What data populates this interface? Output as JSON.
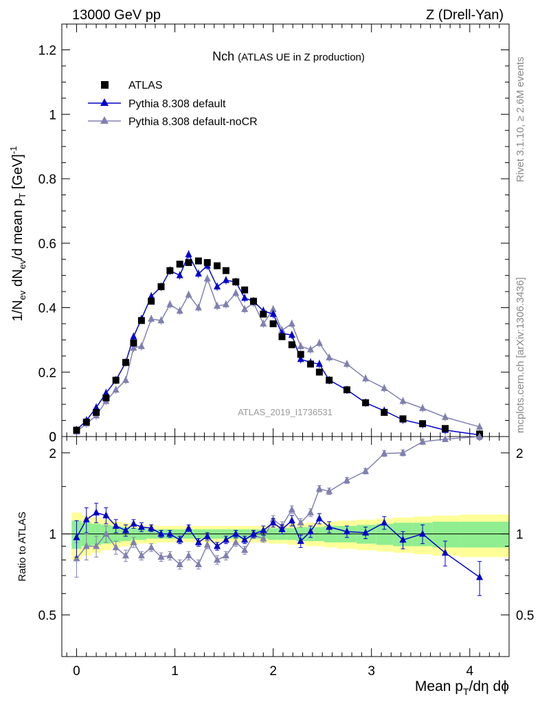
{
  "header": {
    "left": "13000 GeV pp",
    "right": "Z (Drell-Yan)"
  },
  "side_text": {
    "rivet": "Rivet 3.1.10, ≥ 2.6M events",
    "site": "mcplots.cern.ch [arXiv:1306.3436]"
  },
  "chart_data": [
    {
      "type": "line",
      "panel": "main",
      "title_main": "Nch",
      "title_sub": "(ATLAS UE in Z production)",
      "watermark": "ATLAS_2019_I1736531",
      "ylabel": {
        "a": "1/N",
        "b": "ev",
        "c": " dN",
        "d": "ev",
        "e": "/d mean p",
        "f": "T",
        "g": " [GeV]",
        "h": "-1"
      },
      "xlim": [
        -0.15,
        4.4
      ],
      "ylim": [
        0,
        1.28
      ],
      "x_ticks": [
        0,
        1,
        2,
        3,
        4
      ],
      "y_ticks": [
        "0",
        "0.2",
        "0.4",
        "0.6",
        "0.8",
        "1",
        "1.2"
      ],
      "legend": [
        "ATLAS",
        "Pythia 8.308 default",
        "Pythia 8.308 default-noCR"
      ],
      "colors": {
        "data": "#000000",
        "default": "#0000cc",
        "nocr": "#8080b0"
      },
      "x": [
        0.0,
        0.1,
        0.2,
        0.3,
        0.4,
        0.5,
        0.6,
        0.7,
        0.8,
        0.9,
        1.0,
        1.1,
        1.2,
        1.3,
        1.4,
        1.5,
        1.6,
        1.7,
        1.8,
        1.9,
        2.0,
        2.1,
        2.2,
        2.3,
        2.4,
        2.5,
        2.6,
        2.75,
        2.95,
        3.15,
        3.35,
        3.55,
        3.8,
        4.1
      ],
      "series": [
        {
          "name": "ATLAS",
          "x": [
            0.0,
            0.1,
            0.2,
            0.3,
            0.4,
            0.5,
            0.58,
            0.66,
            0.76,
            0.86,
            0.95,
            1.05,
            1.14,
            1.24,
            1.33,
            1.43,
            1.52,
            1.62,
            1.71,
            1.8,
            1.9,
            2.0,
            2.09,
            2.19,
            2.28,
            2.38,
            2.47,
            2.57,
            2.75,
            2.94,
            3.13,
            3.32,
            3.52,
            3.75,
            4.1
          ],
          "values": [
            0.02,
            0.045,
            0.075,
            0.12,
            0.175,
            0.23,
            0.29,
            0.36,
            0.42,
            0.465,
            0.515,
            0.535,
            0.54,
            0.545,
            0.54,
            0.53,
            0.515,
            0.48,
            0.455,
            0.42,
            0.38,
            0.35,
            0.31,
            0.285,
            0.255,
            0.225,
            0.2,
            0.175,
            0.145,
            0.105,
            0.075,
            0.055,
            0.04,
            0.025,
            0.008
          ]
        },
        {
          "name": "Pythia 8.308 default",
          "x": [
            0.0,
            0.1,
            0.2,
            0.3,
            0.4,
            0.5,
            0.58,
            0.66,
            0.76,
            0.86,
            0.95,
            1.05,
            1.14,
            1.24,
            1.33,
            1.43,
            1.52,
            1.62,
            1.71,
            1.8,
            1.9,
            2.0,
            2.09,
            2.19,
            2.28,
            2.38,
            2.47,
            2.57,
            2.75,
            2.94,
            3.13,
            3.32,
            3.52,
            3.75,
            4.1
          ],
          "values": [
            0.02,
            0.05,
            0.09,
            0.135,
            0.175,
            0.23,
            0.31,
            0.365,
            0.435,
            0.465,
            0.515,
            0.5,
            0.565,
            0.505,
            0.53,
            0.465,
            0.485,
            0.48,
            0.43,
            0.42,
            0.39,
            0.38,
            0.32,
            0.315,
            0.24,
            0.23,
            0.225,
            0.175,
            0.145,
            0.105,
            0.08,
            0.052,
            0.038,
            0.02,
            0.005
          ]
        },
        {
          "name": "Pythia 8.308 default-noCR",
          "x": [
            0.0,
            0.1,
            0.2,
            0.3,
            0.4,
            0.5,
            0.58,
            0.66,
            0.76,
            0.86,
            0.95,
            1.05,
            1.14,
            1.24,
            1.33,
            1.43,
            1.52,
            1.62,
            1.71,
            1.8,
            1.9,
            2.0,
            2.09,
            2.19,
            2.28,
            2.38,
            2.47,
            2.57,
            2.75,
            2.94,
            3.13,
            3.32,
            3.52,
            3.75,
            4.1
          ],
          "values": [
            0.015,
            0.04,
            0.065,
            0.11,
            0.145,
            0.175,
            0.275,
            0.28,
            0.365,
            0.36,
            0.41,
            0.39,
            0.44,
            0.4,
            0.49,
            0.405,
            0.41,
            0.445,
            0.395,
            0.415,
            0.35,
            0.395,
            0.33,
            0.35,
            0.28,
            0.27,
            0.29,
            0.245,
            0.225,
            0.18,
            0.15,
            0.11,
            0.088,
            0.06,
            0.03
          ]
        }
      ]
    },
    {
      "type": "line",
      "panel": "ratio",
      "ylabel": "Ratio to ATLAS",
      "xlabel": {
        "a": "Mean p",
        "b": "T",
        "c": "/dη dϕ"
      },
      "xlim": [
        -0.15,
        4.4
      ],
      "ylim": [
        0.35,
        2.3
      ],
      "x_ticks": [
        0,
        1,
        2,
        3,
        4
      ],
      "y_ticks": [
        "0.5",
        "1",
        "2"
      ],
      "series": [
        {
          "name": "Pythia 8.308 default",
          "x": [
            0.0,
            0.1,
            0.2,
            0.3,
            0.4,
            0.5,
            0.58,
            0.66,
            0.76,
            0.86,
            0.95,
            1.05,
            1.14,
            1.24,
            1.33,
            1.43,
            1.52,
            1.62,
            1.71,
            1.8,
            1.9,
            2.0,
            2.09,
            2.19,
            2.28,
            2.38,
            2.47,
            2.57,
            2.75,
            2.94,
            3.13,
            3.32,
            3.52,
            3.75,
            4.1
          ],
          "values": [
            0.97,
            1.13,
            1.2,
            1.17,
            1.07,
            1.03,
            1.09,
            1.06,
            1.05,
            1.0,
            1.0,
            0.95,
            1.05,
            0.93,
            0.98,
            0.9,
            0.95,
            1.0,
            0.95,
            1.0,
            1.03,
            1.1,
            1.04,
            1.12,
            0.94,
            1.02,
            1.14,
            1.06,
            1.02,
            1.01,
            1.1,
            0.95,
            1.0,
            0.85,
            0.69
          ],
          "errors": [
            0.15,
            0.12,
            0.1,
            0.08,
            0.06,
            0.05,
            0.04,
            0.04,
            0.03,
            0.03,
            0.03,
            0.03,
            0.03,
            0.03,
            0.03,
            0.03,
            0.03,
            0.03,
            0.03,
            0.03,
            0.04,
            0.04,
            0.04,
            0.05,
            0.05,
            0.05,
            0.05,
            0.05,
            0.05,
            0.05,
            0.06,
            0.07,
            0.08,
            0.09,
            0.1
          ]
        },
        {
          "name": "Pythia 8.308 default-noCR",
          "x": [
            0.0,
            0.1,
            0.2,
            0.3,
            0.4,
            0.5,
            0.58,
            0.66,
            0.76,
            0.86,
            0.95,
            1.05,
            1.14,
            1.24,
            1.33,
            1.43,
            1.52,
            1.62,
            1.71,
            1.8,
            1.9,
            2.0,
            2.09,
            2.19,
            2.28,
            2.38,
            2.47,
            2.57,
            2.75,
            2.94,
            3.13,
            3.32,
            3.52,
            3.75,
            4.1
          ],
          "values": [
            0.81,
            0.9,
            0.9,
            1.0,
            0.89,
            0.83,
            0.93,
            0.83,
            0.89,
            0.82,
            0.83,
            0.77,
            0.83,
            0.77,
            0.91,
            0.8,
            0.83,
            0.93,
            0.87,
            0.99,
            0.96,
            1.13,
            1.07,
            1.23,
            1.1,
            1.2,
            1.47,
            1.44,
            1.58,
            1.71,
            1.99,
            2.0,
            2.2,
            2.25,
            2.3
          ],
          "errors": [
            0.12,
            0.1,
            0.08,
            0.07,
            0.05,
            0.04,
            0.04,
            0.03,
            0.03,
            0.03,
            0.03,
            0.03,
            0.03,
            0.03,
            0.03,
            0.03,
            0.03,
            0.03,
            0.03,
            0.03,
            0.03,
            0.04,
            0.04,
            0.04,
            0.04,
            0.04,
            0.04,
            0.04,
            0.04,
            0.04,
            0.05,
            0.05,
            0.05,
            0.05,
            0.06
          ]
        }
      ],
      "band_edges": [
        -0.05,
        0.05,
        0.15,
        0.25,
        0.35,
        0.45,
        0.55,
        0.62,
        0.71,
        0.81,
        0.9,
        1.0,
        1.09,
        1.19,
        1.28,
        1.38,
        1.47,
        1.57,
        1.66,
        1.76,
        1.85,
        1.95,
        2.04,
        2.14,
        2.23,
        2.33,
        2.42,
        2.52,
        2.65,
        2.85,
        3.05,
        3.22,
        3.42,
        3.62,
        3.9,
        4.4
      ],
      "band_stat": [
        0.12,
        0.1,
        0.09,
        0.08,
        0.07,
        0.06,
        0.05,
        0.05,
        0.04,
        0.04,
        0.04,
        0.04,
        0.04,
        0.04,
        0.04,
        0.04,
        0.04,
        0.04,
        0.04,
        0.04,
        0.04,
        0.05,
        0.05,
        0.05,
        0.06,
        0.06,
        0.06,
        0.07,
        0.07,
        0.08,
        0.09,
        0.1,
        0.1,
        0.11,
        0.11
      ],
      "band_total": [
        0.2,
        0.17,
        0.15,
        0.13,
        0.11,
        0.1,
        0.09,
        0.08,
        0.08,
        0.07,
        0.07,
        0.07,
        0.07,
        0.07,
        0.07,
        0.07,
        0.07,
        0.07,
        0.07,
        0.07,
        0.07,
        0.08,
        0.08,
        0.09,
        0.09,
        0.1,
        0.1,
        0.11,
        0.12,
        0.13,
        0.14,
        0.15,
        0.16,
        0.17,
        0.18
      ],
      "band_colors": {
        "stat": "#90ee90",
        "total": "#ffff99"
      }
    }
  ]
}
